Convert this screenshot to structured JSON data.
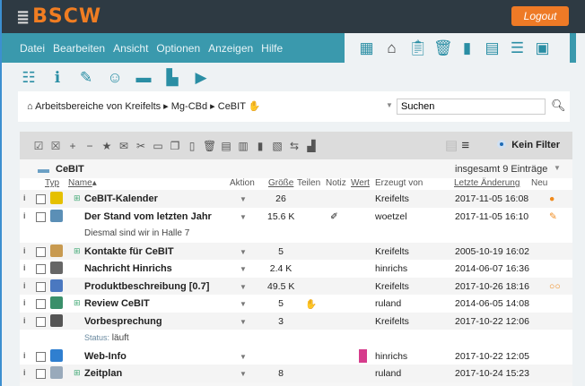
{
  "header": {
    "logo": "BSCW",
    "logout": "Logout"
  },
  "menu": [
    "Datei",
    "Bearbeiten",
    "Ansicht",
    "Optionen",
    "Anzeigen",
    "Hilfe"
  ],
  "app_icons": [
    "workspaces-icon",
    "home-icon",
    "clipboard-icon",
    "trash-icon",
    "addressbook-icon",
    "calendar-icon",
    "tasks-icon",
    "briefcase-icon"
  ],
  "toolbar_icons": [
    "list-icon",
    "info-icon",
    "pencil-icon",
    "add-user-icon",
    "new-folder-icon",
    "new-document-icon",
    "export-icon"
  ],
  "breadcrumb": {
    "items": [
      "Arbeitsbereiche von Kreifelts",
      "Mg-CBd",
      "CeBIT"
    ]
  },
  "search": {
    "value": "Suchen"
  },
  "filter": {
    "label": "Kein Filter"
  },
  "folder": {
    "name": "CeBIT",
    "total": "insgesamt 9 Einträge"
  },
  "columns": {
    "type": "Typ",
    "name": "Name",
    "action": "Aktion",
    "size": "Größe",
    "share": "Teilen",
    "note": "Notiz",
    "value": "Wert",
    "creator": "Erzeugt von",
    "modified": "Letzte Änderung",
    "new": "Neu"
  },
  "rows": [
    {
      "name": "CeBIT-Kalender",
      "size": "26",
      "creator": "Kreifelts",
      "modified": "2017-11-05 16:08",
      "icon": "calendar-icon",
      "new": "●"
    },
    {
      "name": "Der Stand vom letzten Jahr",
      "size": "15.6 K",
      "creator": "woetzel",
      "modified": "2017-11-05 16:10",
      "icon": "image-icon",
      "new": "✎",
      "note": "✐",
      "desc": "Diesmal sind wir in Halle 7"
    },
    {
      "name": "Kontakte für CeBIT",
      "size": "5",
      "creator": "Kreifelts",
      "modified": "2005-10-19 16:02",
      "icon": "contacts-icon"
    },
    {
      "name": "Nachricht Hinrichs",
      "size": "2.4 K",
      "creator": "hinrichs",
      "modified": "2014-06-07 16:36",
      "icon": "message-icon"
    },
    {
      "name": "Produktbeschreibung [0.7]",
      "size": "49.5 K",
      "creator": "Kreifelts",
      "modified": "2017-10-26 18:16",
      "icon": "document-icon",
      "new": "○○"
    },
    {
      "name": "Review CeBIT",
      "size": "5",
      "creator": "ruland",
      "modified": "2014-06-05 14:08",
      "icon": "review-icon"
    },
    {
      "name": "Vorbesprechung",
      "size": "3",
      "creator": "Kreifelts",
      "modified": "2017-10-22 12:06",
      "icon": "meeting-icon",
      "desc_label": "Status:",
      "desc": "läuft"
    },
    {
      "name": "Web-Info",
      "size": "",
      "creator": "hinrichs",
      "modified": "2017-10-22 12:05",
      "icon": "web-icon"
    },
    {
      "name": "Zeitplan",
      "size": "8",
      "creator": "ruland",
      "modified": "2017-10-24 15:23",
      "icon": "discussion-icon"
    }
  ]
}
